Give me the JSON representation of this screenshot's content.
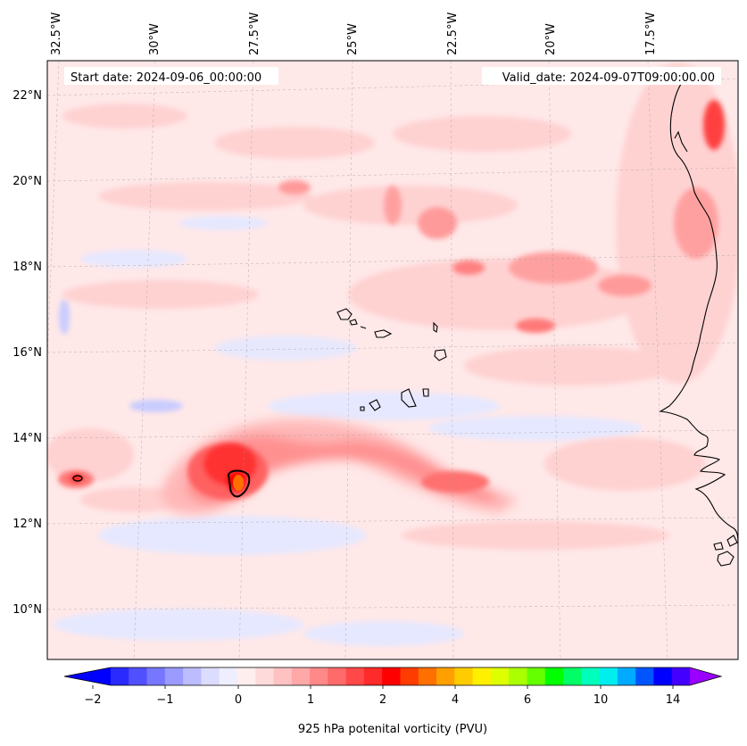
{
  "map": {
    "start_label": "Start date: 2024-09-06_00:00:00",
    "valid_label": "Valid_date: 2024-09-07T09:00:00.00",
    "lon_labels": [
      "32.5°W",
      "30°W",
      "27.5°W",
      "25°W",
      "22.5°W",
      "20°W",
      "17.5°W"
    ],
    "lat_labels": [
      "22°N",
      "20°N",
      "18°N",
      "16°N",
      "14°N",
      "12°N",
      "10°N"
    ]
  },
  "colorbar": {
    "ticks": [
      "−2",
      "−1",
      "0",
      "1",
      "2",
      "4",
      "6",
      "10",
      "14"
    ],
    "label": "925 hPa potenital vorticity (PVU)",
    "colors": [
      "#0000ff",
      "#2a2aff",
      "#5050ff",
      "#7676ff",
      "#9a9aff",
      "#bcbcff",
      "#dcdcff",
      "#eeeeff",
      "#ffeeee",
      "#ffdada",
      "#ffc2c2",
      "#ffa8a8",
      "#ff8888",
      "#ff6a6a",
      "#ff4848",
      "#ff2a2a",
      "#ff0000",
      "#ff3c00",
      "#ff7000",
      "#ffa000",
      "#ffcc00",
      "#fff000",
      "#ddff00",
      "#aaff00",
      "#66ff00",
      "#00ff00",
      "#00ff66",
      "#00ffbb",
      "#00eeee",
      "#00aaff",
      "#0055ff",
      "#0000ff",
      "#4400ff",
      "#9900ff"
    ]
  },
  "colors": {
    "background_field": "#ffe8e8",
    "weak_blue": "#e6e8ff",
    "light_pink": "#ffd4d4",
    "mid_pink": "#ffb2b2",
    "red": "#ff6060",
    "strong_red": "#ff2a2a",
    "core": "#ff6000"
  }
}
